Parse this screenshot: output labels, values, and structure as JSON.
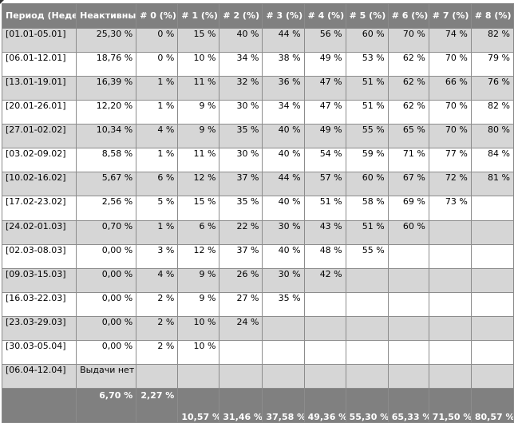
{
  "table": {
    "headers": [
      {
        "key": "period",
        "label": "Период (Неделя)"
      },
      {
        "key": "inactive",
        "label": "Неактивных (%)"
      },
      {
        "key": "w0",
        "label": "# 0 (%)"
      },
      {
        "key": "w1",
        "label": "# 1 (%)"
      },
      {
        "key": "w2",
        "label": "# 2 (%)"
      },
      {
        "key": "w3",
        "label": "# 3 (%)"
      },
      {
        "key": "w4",
        "label": "# 4 (%)"
      },
      {
        "key": "w5",
        "label": "# 5 (%)"
      },
      {
        "key": "w6",
        "label": "# 6 (%)"
      },
      {
        "key": "w7",
        "label": "# 7 (%)"
      },
      {
        "key": "w8",
        "label": "# 8 (%)"
      }
    ],
    "rows": [
      [
        "[01.01-05.01]",
        "25,30 %",
        "0 %",
        "15 %",
        "40 %",
        "44 %",
        "56 %",
        "60 %",
        "70 %",
        "74 %",
        "82 %"
      ],
      [
        "[06.01-12.01]",
        "18,76 %",
        "0 %",
        "10 %",
        "34 %",
        "38 %",
        "49 %",
        "53 %",
        "62 %",
        "70 %",
        "79 %"
      ],
      [
        "[13.01-19.01]",
        "16,39 %",
        "1 %",
        "11 %",
        "32 %",
        "36 %",
        "47 %",
        "51 %",
        "62 %",
        "66 %",
        "76 %"
      ],
      [
        "[20.01-26.01]",
        "12,20 %",
        "1 %",
        "9 %",
        "30 %",
        "34 %",
        "47 %",
        "51 %",
        "62 %",
        "70 %",
        "82 %"
      ],
      [
        "[27.01-02.02]",
        "10,34 %",
        "4 %",
        "9 %",
        "35 %",
        "40 %",
        "49 %",
        "55 %",
        "65 %",
        "70 %",
        "80 %"
      ],
      [
        "[03.02-09.02]",
        "8,58 %",
        "1 %",
        "11 %",
        "30 %",
        "40 %",
        "54 %",
        "59 %",
        "71 %",
        "77 %",
        "84 %"
      ],
      [
        "[10.02-16.02]",
        "5,67 %",
        "6 %",
        "12 %",
        "37 %",
        "44 %",
        "57 %",
        "60 %",
        "67 %",
        "72 %",
        "81 %"
      ],
      [
        "[17.02-23.02]",
        "2,56 %",
        "5 %",
        "15 %",
        "35 %",
        "40 %",
        "51 %",
        "58 %",
        "69 %",
        "73 %",
        ""
      ],
      [
        "[24.02-01.03]",
        "0,70 %",
        "1 %",
        "6 %",
        "22 %",
        "30 %",
        "43 %",
        "51 %",
        "60 %",
        "",
        ""
      ],
      [
        "[02.03-08.03]",
        "0,00 %",
        "3 %",
        "12 %",
        "37 %",
        "40 %",
        "48 %",
        "55 %",
        "",
        "",
        ""
      ],
      [
        "[09.03-15.03]",
        "0,00 %",
        "4 %",
        "9 %",
        "26 %",
        "30 %",
        "42 %",
        "",
        "",
        "",
        ""
      ],
      [
        "[16.03-22.03]",
        "0,00 %",
        "2 %",
        "9 %",
        "27 %",
        "35 %",
        "",
        "",
        "",
        "",
        ""
      ],
      [
        "[23.03-29.03]",
        "0,00 %",
        "2 %",
        "10 %",
        "24 %",
        "",
        "",
        "",
        "",
        "",
        ""
      ],
      [
        "[30.03-05.04]",
        "0,00 %",
        "2 %",
        "10 %",
        "",
        "",
        "",
        "",
        "",
        "",
        ""
      ],
      [
        "[06.04-12.04]",
        "Выдачи нет",
        "",
        "",
        "",
        "",
        "",
        "",
        "",
        "",
        ""
      ]
    ],
    "totals": [
      "",
      "6,70 %",
      "2,27 %",
      "10,57 %",
      "31,46 %",
      "37,58 %",
      "49,36 %",
      "55,30 %",
      "65,33 %",
      "71,50 %",
      "80,57 %"
    ]
  },
  "colors": {
    "header_bg": "#808080",
    "header_text": "#ffffff",
    "row_alt_bg": "#d6d6d6",
    "row_bg": "#ffffff",
    "border": "#8c8c8c"
  }
}
